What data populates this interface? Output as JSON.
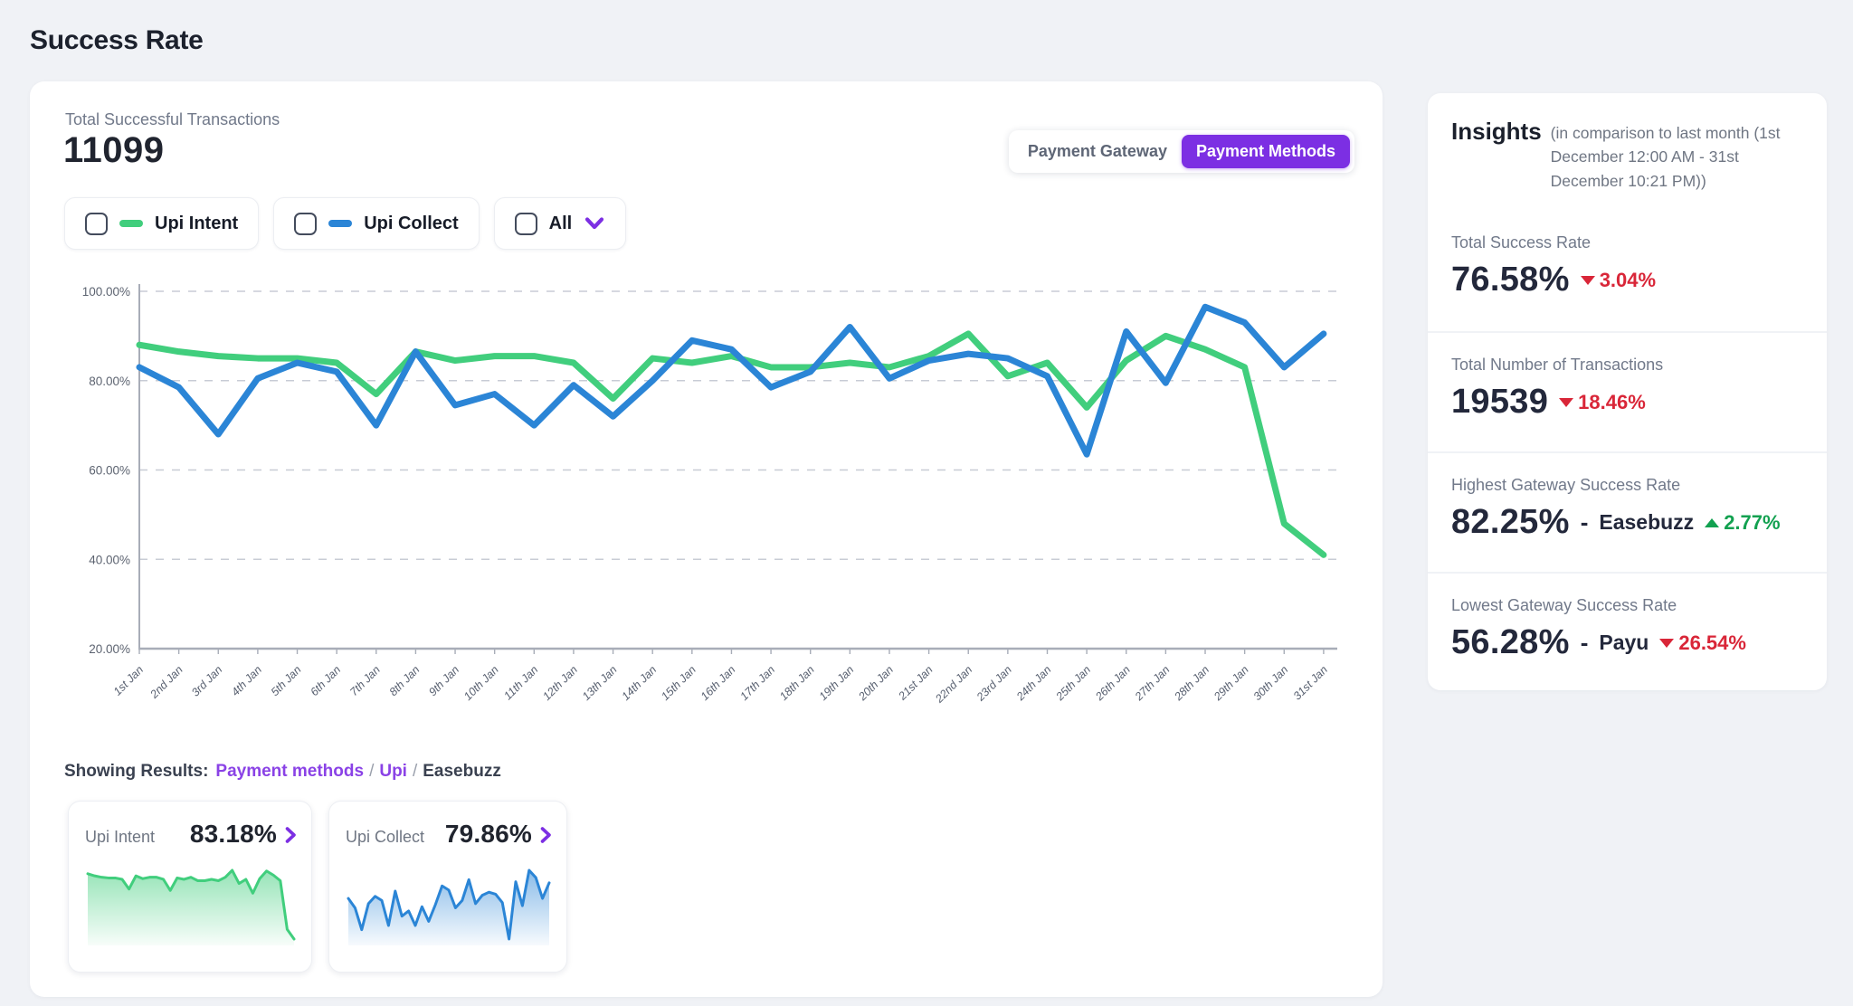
{
  "page": {
    "title": "Success Rate"
  },
  "colors": {
    "accent_purple": "#7C2FE3",
    "link_purple": "#8A42E6",
    "series_green": "#41CE7D",
    "series_blue": "#2B85D6",
    "delta_down_red": "#D92638",
    "delta_up_green": "#12A150"
  },
  "summary": {
    "label": "Total Successful Transactions",
    "value": "11099"
  },
  "view_toggle": {
    "options": [
      {
        "label": "Payment Gateway",
        "active": false
      },
      {
        "label": "Payment Methods",
        "active": true
      }
    ]
  },
  "legend_filters": [
    {
      "label": "Upi Intent",
      "swatch": "#41CE7D",
      "checked": false
    },
    {
      "label": "Upi Collect",
      "swatch": "#2B85D6",
      "checked": false
    },
    {
      "label": "All",
      "checked": false,
      "has_dropdown": true
    }
  ],
  "chart_data": {
    "type": "line",
    "x": [
      "1st Jan",
      "2nd Jan",
      "3rd Jan",
      "4th Jan",
      "5th Jan",
      "6th Jan",
      "7th Jan",
      "8th Jan",
      "9th Jan",
      "10th Jan",
      "11th Jan",
      "12th Jan",
      "13th Jan",
      "14th Jan",
      "15th Jan",
      "16th Jan",
      "17th Jan",
      "18th Jan",
      "19th Jan",
      "20th Jan",
      "21st Jan",
      "22nd Jan",
      "23rd Jan",
      "24th Jan",
      "25th Jan",
      "26th Jan",
      "27th Jan",
      "28th Jan",
      "29th Jan",
      "30th Jan",
      "31st Jan"
    ],
    "series": [
      {
        "name": "Upi Intent",
        "color": "#41CE7D",
        "values": [
          88,
          86.5,
          85.5,
          85,
          85,
          84,
          77,
          86.5,
          84.5,
          85.5,
          85.5,
          84,
          76,
          85,
          84,
          85.5,
          83,
          83,
          84,
          83,
          85.5,
          90.5,
          81,
          84,
          74,
          84.5,
          90,
          87,
          83,
          48,
          41
        ]
      },
      {
        "name": "Upi Collect",
        "color": "#2B85D6",
        "values": [
          83,
          78.5,
          68,
          80.5,
          84,
          82,
          70,
          86.5,
          74.5,
          77,
          70,
          79,
          72,
          80,
          89,
          87,
          78.5,
          82,
          92,
          80.5,
          84.5,
          86,
          85,
          81,
          63.5,
          91,
          79.5,
          96.5,
          93,
          83,
          90.5
        ]
      }
    ],
    "title": "",
    "xlabel": "",
    "ylabel": "",
    "ylim": [
      20,
      100
    ],
    "yticks": [
      100,
      80,
      60,
      40,
      20
    ],
    "ytick_suffix": "%",
    "grid": "horizontal-dashed",
    "legend_position": "top-left-checkbox-chips"
  },
  "breadcrumb": {
    "prefix": "Showing Results:",
    "separator": "/",
    "items": [
      {
        "label": "Payment methods",
        "style": "link"
      },
      {
        "label": "Upi",
        "style": "link"
      },
      {
        "label": "Easebuzz",
        "style": "plain"
      }
    ]
  },
  "method_cards": [
    {
      "label": "Upi Intent",
      "value": "83.18%",
      "color": "#41CE7D",
      "series_ref": 0
    },
    {
      "label": "Upi Collect",
      "value": "79.86%",
      "color": "#2B85D6",
      "series_ref": 1
    }
  ],
  "insights": {
    "title": "Insights",
    "subtitle": "(in comparison to last month (1st December 12:00 AM - 31st December 10:21 PM))",
    "items": [
      {
        "label": "Total Success Rate",
        "value": "76.58%",
        "delta": "3.04%",
        "direction": "down"
      },
      {
        "label": "Total Number of Transactions",
        "value": "19539",
        "delta": "18.46%",
        "direction": "down"
      },
      {
        "label": "Highest Gateway Success Rate",
        "value": "82.25%",
        "separator": "-",
        "gateway": "Easebuzz",
        "delta": "2.77%",
        "direction": "up"
      },
      {
        "label": "Lowest Gateway Success Rate",
        "value": "56.28%",
        "separator": "-",
        "gateway": "Payu",
        "delta": "26.54%",
        "direction": "down"
      }
    ]
  }
}
